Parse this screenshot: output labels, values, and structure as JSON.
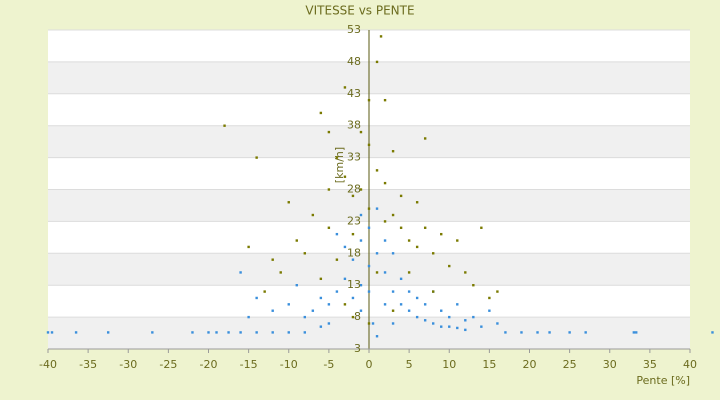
{
  "chart_data": {
    "type": "scatter",
    "title": "VITESSE vs PENTE",
    "xlabel": "Pente [%]",
    "ylabel": "[km/h]",
    "xlim": [
      -40,
      40
    ],
    "xticks": [
      -40,
      -35,
      -30,
      -25,
      -20,
      -15,
      -10,
      -5,
      0,
      5,
      10,
      15,
      20,
      25,
      30,
      35,
      40
    ],
    "ylim": [
      3,
      53
    ],
    "yticks": [
      3,
      8,
      13,
      18,
      23,
      28,
      33,
      38,
      43,
      48,
      53
    ],
    "grid": true,
    "series": [
      {
        "color": "#3a8fdc",
        "x": [
          -40,
          -39.5,
          -36.5,
          -32.5,
          -27,
          -22,
          -20,
          -19,
          -17.5,
          -16,
          -14,
          -12,
          -10,
          -8,
          17,
          19,
          21,
          22.5,
          25,
          27,
          33,
          33.3,
          42.8,
          -3,
          -2,
          -1,
          0,
          1,
          2,
          3,
          4,
          5,
          6,
          7,
          8,
          9,
          10,
          11,
          12,
          -4,
          -5,
          -6,
          -7,
          -8,
          -9,
          -10,
          -12,
          -14,
          -16,
          -15,
          -1,
          0,
          1,
          -1,
          0.5,
          2,
          3,
          4,
          5,
          6,
          7,
          8,
          9,
          10,
          11,
          12,
          13,
          14,
          15,
          16,
          -2,
          -3,
          -4,
          -5,
          -6,
          1,
          3,
          0,
          -1,
          2
        ],
        "values": [
          5.6,
          5.6,
          5.6,
          5.6,
          5.6,
          5.6,
          5.6,
          5.6,
          5.6,
          5.6,
          5.6,
          5.6,
          5.6,
          5.6,
          5.6,
          5.6,
          5.6,
          5.6,
          5.6,
          5.6,
          5.6,
          5.6,
          5.6,
          14,
          17,
          20,
          22,
          18,
          15,
          12,
          10,
          9,
          8,
          7.5,
          7,
          6.5,
          6.5,
          6.3,
          6,
          12,
          10,
          11,
          9,
          8,
          13,
          10,
          9,
          11,
          15,
          8,
          9,
          12,
          25,
          24,
          7,
          20,
          18,
          14,
          12,
          11,
          10,
          12,
          9,
          8,
          10,
          7.5,
          8,
          6.5,
          9,
          7,
          11,
          19,
          21,
          7,
          6.5,
          5,
          7,
          16,
          13,
          10
        ]
      },
      {
        "color": "#7a7a00",
        "x": [
          -2,
          -4,
          -5,
          -3,
          -6,
          0,
          1,
          1.5,
          2,
          -18,
          -14,
          -10,
          -7,
          -5,
          -3,
          -1,
          0,
          1,
          2,
          3,
          4,
          5,
          6,
          7,
          8,
          9,
          10,
          11,
          12,
          13,
          14,
          15,
          16,
          -8,
          -9,
          -11,
          -12,
          -13,
          -6,
          -4,
          -2,
          0,
          2,
          4,
          6,
          3,
          7,
          -1,
          1,
          -3,
          5,
          8,
          0,
          -2,
          3,
          -15,
          -5
        ],
        "values": [
          27,
          33,
          37,
          44,
          40,
          42,
          48,
          52,
          42,
          38,
          33,
          26,
          24,
          22,
          30,
          28,
          35,
          31,
          29,
          24,
          22,
          20,
          19,
          22,
          18,
          21,
          16,
          20,
          15,
          13,
          22,
          11,
          12,
          18,
          20,
          15,
          17,
          12,
          14,
          17,
          21,
          25,
          23,
          27,
          26,
          34,
          36,
          37,
          15,
          10,
          15,
          12,
          7,
          8,
          9,
          19,
          28
        ]
      }
    ]
  }
}
